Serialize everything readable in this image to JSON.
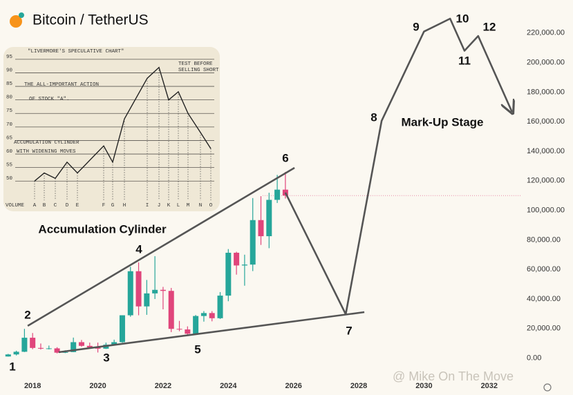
{
  "chart_data": [
    {
      "type": "candlestick",
      "title": "Bitcoin / TetherUS",
      "xlim": [
        2017,
        2033
      ],
      "xticks": [
        2018,
        2020,
        2022,
        2024,
        2026,
        2028,
        2030,
        2032
      ],
      "ylim": [
        -10000,
        240000
      ],
      "yticks": [
        {
          "value": 0,
          "label": "0.00"
        },
        {
          "value": 20000,
          "label": "20,000.00"
        },
        {
          "value": 40000,
          "label": "40,000.00"
        },
        {
          "value": 60000,
          "label": "60,000.00"
        },
        {
          "value": 80000,
          "label": "80,000.00"
        },
        {
          "value": 100000,
          "label": "100,000.00"
        },
        {
          "value": 120000,
          "label": "120,000.00"
        },
        {
          "value": 140000,
          "label": "140,000.00"
        },
        {
          "value": 160000,
          "label": "160,000.00"
        },
        {
          "value": 180000,
          "label": "180,000.00"
        },
        {
          "value": 200000,
          "label": "200,000.00"
        },
        {
          "value": 220000,
          "label": "220,000.00"
        }
      ],
      "up_color": "#26a69a",
      "down_color": "#e0457b",
      "x": [
        2017.25,
        2017.5,
        2017.75,
        2018.0,
        2018.25,
        2018.5,
        2018.75,
        2019.0,
        2019.25,
        2019.5,
        2019.75,
        2020.0,
        2020.25,
        2020.5,
        2020.75,
        2021.0,
        2021.25,
        2021.5,
        2021.75,
        2022.0,
        2022.25,
        2022.5,
        2022.75,
        2023.0,
        2023.25,
        2023.5,
        2023.75,
        2024.0,
        2024.25,
        2024.5,
        2024.75,
        2025.0,
        2025.25,
        2025.5,
        2025.75
      ],
      "open": [
        1100,
        2500,
        4300,
        13800,
        6900,
        6400,
        6600,
        3700,
        4100,
        10800,
        8300,
        7200,
        6400,
        9100,
        10800,
        29000,
        58800,
        35000,
        43800,
        46200,
        45500,
        19800,
        19400,
        16500,
        28500,
        30500,
        27000,
        42300,
        71300,
        62700,
        63300,
        93400,
        82500,
        107100,
        114000
      ],
      "high": [
        2900,
        5000,
        19800,
        17000,
        9900,
        8500,
        7400,
        5300,
        13900,
        12300,
        10500,
        10500,
        10500,
        12500,
        29000,
        61800,
        64800,
        52900,
        69000,
        48200,
        47500,
        25200,
        21500,
        29200,
        31800,
        31800,
        44700,
        73800,
        72000,
        70000,
        108300,
        109600,
        111900,
        124000,
        126000
      ],
      "low": [
        1000,
        1800,
        4100,
        6000,
        5800,
        5900,
        3200,
        3400,
        4100,
        7700,
        6500,
        3800,
        6200,
        8900,
        10400,
        28000,
        29000,
        29300,
        40000,
        33000,
        17600,
        18200,
        15500,
        16500,
        24700,
        24900,
        26500,
        38500,
        56500,
        49000,
        58900,
        76600,
        74400,
        105000,
        108000
      ],
      "close": [
        2500,
        4300,
        13800,
        6900,
        6400,
        6600,
        3700,
        4100,
        10800,
        8300,
        7200,
        6400,
        9100,
        10800,
        29000,
        58800,
        35000,
        43800,
        46200,
        45500,
        19800,
        19400,
        16500,
        28500,
        30500,
        27000,
        42300,
        71300,
        62700,
        63300,
        93400,
        82500,
        107100,
        114000,
        110000
      ],
      "series": [
        {
          "color": "#555555",
          "x": [
            2025.75,
            2027.6,
            2028.7,
            2030.0,
            2030.8,
            2031.24,
            2031.66,
            2032.7
          ],
          "values": [
            112000,
            29700,
            160500,
            221000,
            229700,
            208000,
            218000,
            166600
          ]
        },
        {
          "color": "#555555",
          "x": [
            2017.85,
            2026.03
          ],
          "values": [
            21800,
            128800
          ]
        },
        {
          "color": "#555555",
          "x": [
            2018.8,
            2028.17
          ],
          "values": [
            4000,
            31100
          ]
        }
      ],
      "hline": {
        "value": 110000,
        "color": "#e88aa8"
      },
      "annotations": [
        "1",
        "2",
        "3",
        "4",
        "5",
        "6",
        "7",
        "8",
        "9",
        "10",
        "11",
        "12",
        "Mark-Up Stage",
        "Accumulation Cylinder"
      ],
      "watermark": "@ Mike On The Move"
    },
    {
      "type": "line",
      "title": "\"LIVERMORE'S SPECULATIVE CHART\"",
      "notes": [
        "THE ALL-IMPORTANT ACTION",
        "OF STOCK \"A\".",
        "ACCUMULATION CYLINDER",
        "WITH WIDENING MOVES",
        "TEST BEFORE",
        "SELLING SHORT"
      ],
      "xlabel": "VOLUME",
      "ylim": [
        47,
        97
      ],
      "yticks": [
        50,
        55,
        60,
        65,
        70,
        75,
        80,
        85,
        90,
        95
      ],
      "categories": [
        "A",
        "B",
        "C",
        "D",
        "E",
        "F",
        "G",
        "H",
        "I",
        "J",
        "K",
        "L",
        "M",
        "N",
        "O"
      ],
      "values": [
        50,
        53,
        51,
        57,
        53,
        63,
        57,
        73,
        88,
        92,
        80,
        83,
        75,
        68,
        62
      ],
      "color": "#222222"
    }
  ]
}
